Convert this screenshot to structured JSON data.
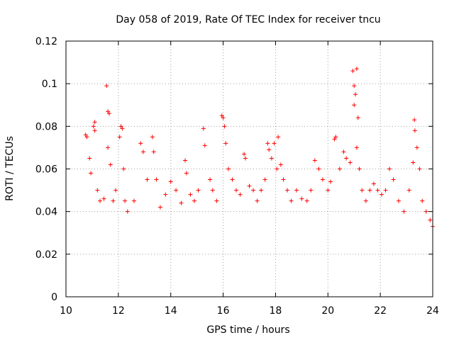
{
  "chart_data": {
    "type": "scatter",
    "title": "Day 058 of 2019, Rate Of TEC Index for receiver tncu",
    "xlabel": "GPS time / hours",
    "ylabel": "ROTI / TECUs",
    "xlim": [
      10,
      24
    ],
    "ylim": [
      0,
      0.12
    ],
    "xticks": [
      10,
      12,
      14,
      16,
      18,
      20,
      22,
      24
    ],
    "xtick_labels": [
      "10",
      "12",
      "14",
      "16",
      "18",
      "20",
      "22",
      "24"
    ],
    "yticks": [
      0,
      0.02,
      0.04,
      0.06,
      0.08,
      0.1,
      0.12
    ],
    "ytick_labels": [
      "0",
      "0.02",
      "0.04",
      "0.06",
      "0.08",
      "0.1",
      "0.12"
    ],
    "grid": true,
    "marker": "+",
    "color": "#ff0000",
    "series": [
      {
        "name": "ROTI",
        "points": [
          [
            10.75,
            0.076
          ],
          [
            10.8,
            0.075
          ],
          [
            10.9,
            0.065
          ],
          [
            10.95,
            0.058
          ],
          [
            11.05,
            0.08
          ],
          [
            11.1,
            0.082
          ],
          [
            11.1,
            0.078
          ],
          [
            11.2,
            0.05
          ],
          [
            11.3,
            0.045
          ],
          [
            11.45,
            0.046
          ],
          [
            11.55,
            0.099
          ],
          [
            11.6,
            0.087
          ],
          [
            11.65,
            0.086
          ],
          [
            11.6,
            0.07
          ],
          [
            11.7,
            0.062
          ],
          [
            11.8,
            0.045
          ],
          [
            11.9,
            0.05
          ],
          [
            12.05,
            0.075
          ],
          [
            12.1,
            0.08
          ],
          [
            12.15,
            0.079
          ],
          [
            12.2,
            0.06
          ],
          [
            12.25,
            0.045
          ],
          [
            12.35,
            0.04
          ],
          [
            12.6,
            0.045
          ],
          [
            12.85,
            0.072
          ],
          [
            12.95,
            0.068
          ],
          [
            13.1,
            0.055
          ],
          [
            13.3,
            0.075
          ],
          [
            13.35,
            0.068
          ],
          [
            13.45,
            0.055
          ],
          [
            13.6,
            0.042
          ],
          [
            13.8,
            0.048
          ],
          [
            14.0,
            0.054
          ],
          [
            14.2,
            0.05
          ],
          [
            14.4,
            0.044
          ],
          [
            14.55,
            0.064
          ],
          [
            14.6,
            0.058
          ],
          [
            14.75,
            0.048
          ],
          [
            14.9,
            0.045
          ],
          [
            15.05,
            0.05
          ],
          [
            15.25,
            0.079
          ],
          [
            15.3,
            0.071
          ],
          [
            15.5,
            0.055
          ],
          [
            15.6,
            0.05
          ],
          [
            15.75,
            0.045
          ],
          [
            15.95,
            0.085
          ],
          [
            16.0,
            0.084
          ],
          [
            16.05,
            0.08
          ],
          [
            16.1,
            0.072
          ],
          [
            16.2,
            0.06
          ],
          [
            16.35,
            0.055
          ],
          [
            16.5,
            0.05
          ],
          [
            16.65,
            0.048
          ],
          [
            16.8,
            0.067
          ],
          [
            16.85,
            0.065
          ],
          [
            17.0,
            0.052
          ],
          [
            17.15,
            0.05
          ],
          [
            17.3,
            0.045
          ],
          [
            17.45,
            0.05
          ],
          [
            17.6,
            0.055
          ],
          [
            17.7,
            0.072
          ],
          [
            17.75,
            0.069
          ],
          [
            17.85,
            0.065
          ],
          [
            17.95,
            0.072
          ],
          [
            18.05,
            0.06
          ],
          [
            18.1,
            0.075
          ],
          [
            18.2,
            0.062
          ],
          [
            18.3,
            0.055
          ],
          [
            18.45,
            0.05
          ],
          [
            18.6,
            0.045
          ],
          [
            18.8,
            0.05
          ],
          [
            19.0,
            0.046
          ],
          [
            19.2,
            0.045
          ],
          [
            19.35,
            0.05
          ],
          [
            19.5,
            0.064
          ],
          [
            19.65,
            0.06
          ],
          [
            19.8,
            0.055
          ],
          [
            20.0,
            0.05
          ],
          [
            20.1,
            0.054
          ],
          [
            20.25,
            0.074
          ],
          [
            20.3,
            0.075
          ],
          [
            20.45,
            0.06
          ],
          [
            20.6,
            0.068
          ],
          [
            20.7,
            0.065
          ],
          [
            20.85,
            0.063
          ],
          [
            20.95,
            0.106
          ],
          [
            21.0,
            0.099
          ],
          [
            21.05,
            0.095
          ],
          [
            21.0,
            0.09
          ],
          [
            21.1,
            0.107
          ],
          [
            21.15,
            0.084
          ],
          [
            21.1,
            0.07
          ],
          [
            21.2,
            0.06
          ],
          [
            21.3,
            0.05
          ],
          [
            21.45,
            0.045
          ],
          [
            21.6,
            0.05
          ],
          [
            21.75,
            0.053
          ],
          [
            21.9,
            0.05
          ],
          [
            22.05,
            0.048
          ],
          [
            22.2,
            0.05
          ],
          [
            22.35,
            0.06
          ],
          [
            22.5,
            0.055
          ],
          [
            22.7,
            0.045
          ],
          [
            22.9,
            0.04
          ],
          [
            23.1,
            0.05
          ],
          [
            23.25,
            0.063
          ],
          [
            23.3,
            0.083
          ],
          [
            23.32,
            0.078
          ],
          [
            23.4,
            0.07
          ],
          [
            23.5,
            0.06
          ],
          [
            23.6,
            0.045
          ],
          [
            23.75,
            0.04
          ],
          [
            23.9,
            0.036
          ],
          [
            24.0,
            0.033
          ]
        ]
      }
    ]
  }
}
